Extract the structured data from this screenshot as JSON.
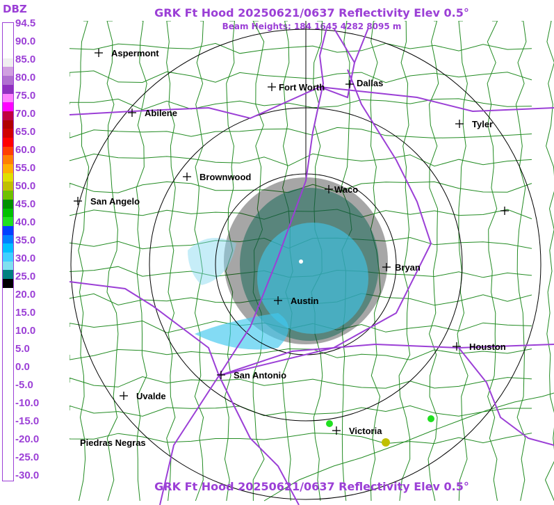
{
  "header": {
    "title": "GRK Ft Hood 20250621/0637 Reflectivity Elev 0.5°",
    "subtitle": "Beam Heights: 184 1645 4282 8095 m",
    "footer_title": "GRK Ft Hood 20250621/0637 Reflectivity Elev 0.5°"
  },
  "legend": {
    "unit": "DBZ",
    "ticks": [
      "94.5",
      "90.0",
      "85.0",
      "80.0",
      "75.0",
      "70.0",
      "65.0",
      "60.0",
      "55.0",
      "50.0",
      "45.0",
      "40.0",
      "35.0",
      "30.0",
      "25.0",
      "20.0",
      "15.0",
      "10.0",
      "5.0",
      "0.0",
      "-5.0",
      "-10.0",
      "-15.0",
      "-20.0",
      "-25.0",
      "-30.0"
    ],
    "colors": [
      "#ffffff",
      "#ffffff",
      "#ffffff",
      "#ffffff",
      "#f0f0f0",
      "#d0a0e0",
      "#b070d0",
      "#9030c0",
      "#ff80ff",
      "#ff00ff",
      "#c00040",
      "#b00000",
      "#d00000",
      "#ff0000",
      "#ff4000",
      "#ff8000",
      "#ffb000",
      "#e0e000",
      "#c0c000",
      "#70c000",
      "#009000",
      "#00c000",
      "#20e020",
      "#0040ff",
      "#0080ff",
      "#00c0ff",
      "#40d0ff",
      "#80e0f0",
      "#008080",
      "#000000",
      "#ffffff",
      "#ffffff",
      "#ffffff",
      "#ffffff",
      "#ffffff",
      "#ffffff",
      "#ffffff",
      "#ffffff",
      "#ffffff",
      "#ffffff",
      "#ffffff",
      "#ffffff",
      "#ffffff",
      "#ffffff",
      "#ffffff",
      "#ffffff",
      "#ffffff",
      "#ffffff",
      "#ffffff",
      "#ffffff",
      "#ffffff",
      "#ffffff"
    ]
  },
  "map": {
    "range_ring_color": "#000000",
    "county_color": "#228b22",
    "highway_color": "#9b3fd6",
    "cities": [
      {
        "name": "Aspermont"
      },
      {
        "name": "Fort Worth"
      },
      {
        "name": "Dallas"
      },
      {
        "name": "Abilene"
      },
      {
        "name": "Tyler"
      },
      {
        "name": "Brownwood"
      },
      {
        "name": "Waco"
      },
      {
        "name": "San Angelo"
      },
      {
        "name": "Bryan"
      },
      {
        "name": "Austin"
      },
      {
        "name": "Houston"
      },
      {
        "name": "San Antonio"
      },
      {
        "name": "Uvalde"
      },
      {
        "name": "Victoria"
      },
      {
        "name": "Piedras Negras"
      },
      {
        "name": ""
      }
    ]
  }
}
